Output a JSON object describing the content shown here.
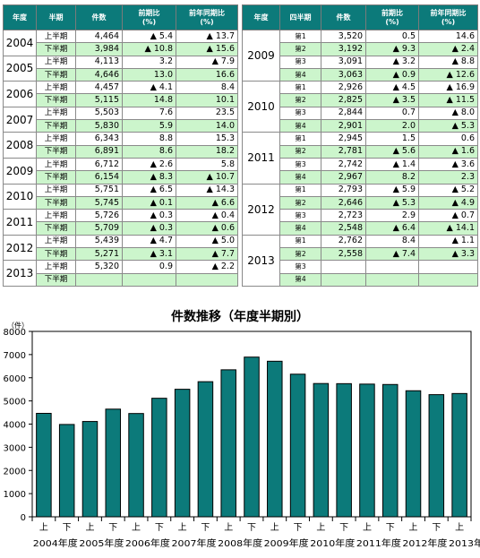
{
  "left_table": {
    "headers": [
      "年度",
      "半期",
      "件数",
      "前期比\n(%)",
      "前年同期比\n(%)"
    ],
    "years": [
      {
        "year": "2004",
        "rows": [
          {
            "half": "上半期",
            "count": "4,464",
            "prev": "▲ 5.4",
            "yoy": "▲ 13.7"
          },
          {
            "half": "下半期",
            "count": "3,984",
            "prev": "▲ 10.8",
            "yoy": "▲ 15.6"
          }
        ]
      },
      {
        "year": "2005",
        "rows": [
          {
            "half": "上半期",
            "count": "4,113",
            "prev": "3.2",
            "yoy": "▲ 7.9"
          },
          {
            "half": "下半期",
            "count": "4,646",
            "prev": "13.0",
            "yoy": "16.6"
          }
        ]
      },
      {
        "year": "2006",
        "rows": [
          {
            "half": "上半期",
            "count": "4,457",
            "prev": "▲ 4.1",
            "yoy": "8.4"
          },
          {
            "half": "下半期",
            "count": "5,115",
            "prev": "14.8",
            "yoy": "10.1"
          }
        ]
      },
      {
        "year": "2007",
        "rows": [
          {
            "half": "上半期",
            "count": "5,503",
            "prev": "7.6",
            "yoy": "23.5"
          },
          {
            "half": "下半期",
            "count": "5,830",
            "prev": "5.9",
            "yoy": "14.0"
          }
        ]
      },
      {
        "year": "2008",
        "rows": [
          {
            "half": "上半期",
            "count": "6,343",
            "prev": "8.8",
            "yoy": "15.3"
          },
          {
            "half": "下半期",
            "count": "6,891",
            "prev": "8.6",
            "yoy": "18.2"
          }
        ]
      },
      {
        "year": "2009",
        "rows": [
          {
            "half": "上半期",
            "count": "6,712",
            "prev": "▲ 2.6",
            "yoy": "5.8"
          },
          {
            "half": "下半期",
            "count": "6,154",
            "prev": "▲ 8.3",
            "yoy": "▲ 10.7"
          }
        ]
      },
      {
        "year": "2010",
        "rows": [
          {
            "half": "上半期",
            "count": "5,751",
            "prev": "▲ 6.5",
            "yoy": "▲ 14.3"
          },
          {
            "half": "下半期",
            "count": "5,745",
            "prev": "▲ 0.1",
            "yoy": "▲ 6.6"
          }
        ]
      },
      {
        "year": "2011",
        "rows": [
          {
            "half": "上半期",
            "count": "5,726",
            "prev": "▲ 0.3",
            "yoy": "▲ 0.4"
          },
          {
            "half": "下半期",
            "count": "5,709",
            "prev": "▲ 0.3",
            "yoy": "▲ 0.6"
          }
        ]
      },
      {
        "year": "2012",
        "rows": [
          {
            "half": "上半期",
            "count": "5,439",
            "prev": "▲ 4.7",
            "yoy": "▲ 5.0"
          },
          {
            "half": "下半期",
            "count": "5,271",
            "prev": "▲ 3.1",
            "yoy": "▲ 7.7"
          }
        ]
      },
      {
        "year": "2013",
        "rows": [
          {
            "half": "上半期",
            "count": "5,320",
            "prev": "0.9",
            "yoy": "▲ 2.2"
          },
          {
            "half": "下半期",
            "count": "",
            "prev": "",
            "yoy": ""
          }
        ]
      }
    ]
  },
  "right_table": {
    "headers": [
      "年度",
      "四半期",
      "件数",
      "前期比\n(%)",
      "前年同期比\n(%)"
    ],
    "years": [
      {
        "year": "2009",
        "rows": [
          {
            "q": "第1",
            "count": "3,520",
            "prev": "0.5",
            "yoy": "14.6"
          },
          {
            "q": "第2",
            "count": "3,192",
            "prev": "▲ 9.3",
            "yoy": "▲ 2.4"
          },
          {
            "q": "第3",
            "count": "3,091",
            "prev": "▲ 3.2",
            "yoy": "▲ 8.8"
          },
          {
            "q": "第4",
            "count": "3,063",
            "prev": "▲ 0.9",
            "yoy": "▲ 12.6"
          }
        ]
      },
      {
        "year": "2010",
        "rows": [
          {
            "q": "第1",
            "count": "2,926",
            "prev": "▲ 4.5",
            "yoy": "▲ 16.9"
          },
          {
            "q": "第2",
            "count": "2,825",
            "prev": "▲ 3.5",
            "yoy": "▲ 11.5"
          },
          {
            "q": "第3",
            "count": "2,844",
            "prev": "0.7",
            "yoy": "▲ 8.0"
          },
          {
            "q": "第4",
            "count": "2,901",
            "prev": "2.0",
            "yoy": "▲ 5.3"
          }
        ]
      },
      {
        "year": "2011",
        "rows": [
          {
            "q": "第1",
            "count": "2,945",
            "prev": "1.5",
            "yoy": "0.6"
          },
          {
            "q": "第2",
            "count": "2,781",
            "prev": "▲ 5.6",
            "yoy": "▲ 1.6"
          },
          {
            "q": "第3",
            "count": "2,742",
            "prev": "▲ 1.4",
            "yoy": "▲ 3.6"
          },
          {
            "q": "第4",
            "count": "2,967",
            "prev": "8.2",
            "yoy": "2.3"
          }
        ]
      },
      {
        "year": "2012",
        "rows": [
          {
            "q": "第1",
            "count": "2,793",
            "prev": "▲ 5.9",
            "yoy": "▲ 5.2"
          },
          {
            "q": "第2",
            "count": "2,646",
            "prev": "▲ 5.3",
            "yoy": "▲ 4.9"
          },
          {
            "q": "第3",
            "count": "2,723",
            "prev": "2.9",
            "yoy": "▲ 0.7"
          },
          {
            "q": "第4",
            "count": "2,548",
            "prev": "▲ 6.4",
            "yoy": "▲ 14.1"
          }
        ]
      },
      {
        "year": "2013",
        "rows": [
          {
            "q": "第1",
            "count": "2,762",
            "prev": "8.4",
            "yoy": "▲ 1.1"
          },
          {
            "q": "第2",
            "count": "2,558",
            "prev": "▲ 7.4",
            "yoy": "▲ 3.3"
          },
          {
            "q": "第3",
            "count": "",
            "prev": "",
            "yoy": ""
          },
          {
            "q": "第4",
            "count": "",
            "prev": "",
            "yoy": ""
          }
        ]
      }
    ]
  },
  "colors": {
    "header": "#0c7a7a",
    "shade": "#ccf5cc",
    "bar": "#0c7a7a"
  },
  "chart_data": {
    "type": "bar",
    "title": "件数推移（年度半期別）",
    "ylabel": "（件）",
    "ylim": [
      0,
      8000
    ],
    "yticks": [
      0,
      1000,
      2000,
      3000,
      4000,
      5000,
      6000,
      7000,
      8000
    ],
    "grid": false,
    "categories": [
      "上",
      "下",
      "上",
      "下",
      "上",
      "下",
      "上",
      "下",
      "上",
      "下",
      "上",
      "下",
      "上",
      "下",
      "上",
      "下",
      "上",
      "下",
      "上"
    ],
    "groups": [
      "2004年度",
      "2005年度",
      "2006年度",
      "2007年度",
      "2008年度",
      "2009年度",
      "2010年度",
      "2011年度",
      "2012年度",
      "2013年度"
    ],
    "values": [
      4464,
      3984,
      4113,
      4646,
      4457,
      5115,
      5503,
      5830,
      6343,
      6891,
      6712,
      6154,
      5751,
      5745,
      5726,
      5709,
      5439,
      5271,
      5320
    ]
  }
}
